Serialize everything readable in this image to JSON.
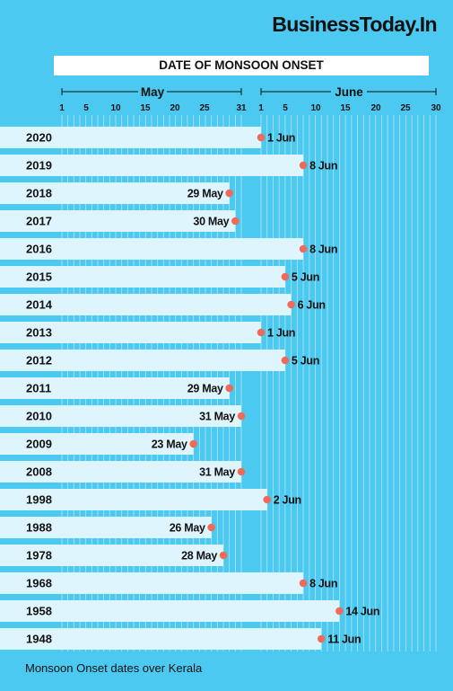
{
  "brand": {
    "name": "BusinessToday.In"
  },
  "chart_data": {
    "type": "bar",
    "orientation": "horizontal",
    "title": "DATE OF MONSOON ONSET",
    "caption": "Monsoon Onset dates over Kerala",
    "month_groups": [
      {
        "label": "May",
        "ticks": [
          "1",
          "5",
          "10",
          "15",
          "20",
          "25",
          "31"
        ]
      },
      {
        "label": "June",
        "ticks": [
          "1",
          "5",
          "10",
          "15",
          "20",
          "25",
          "30"
        ]
      }
    ],
    "xlim": [
      "1 May",
      "30 Jun"
    ],
    "grid": true,
    "categories": [
      "2020",
      "2019",
      "2018",
      "2017",
      "2016",
      "2015",
      "2014",
      "2013",
      "2012",
      "2011",
      "2010",
      "2009",
      "2008",
      "1998",
      "1988",
      "1978",
      "1968",
      "1958",
      "1948"
    ],
    "labels": [
      "1 Jun",
      "8 Jun",
      "29 May",
      "30 May",
      "8 Jun",
      "5 Jun",
      "6 Jun",
      "1 Jun",
      "5 Jun",
      "29 May",
      "31 May",
      "23 May",
      "31 May",
      "2 Jun",
      "26 May",
      "28 May",
      "8 Jun",
      "14 Jun",
      "11 Jun"
    ],
    "colors": {
      "background": "#4cc9f0",
      "bar": "#dff5fd",
      "marker": "#f06a5a",
      "text": "#111111",
      "grid": "#ffffff"
    }
  }
}
